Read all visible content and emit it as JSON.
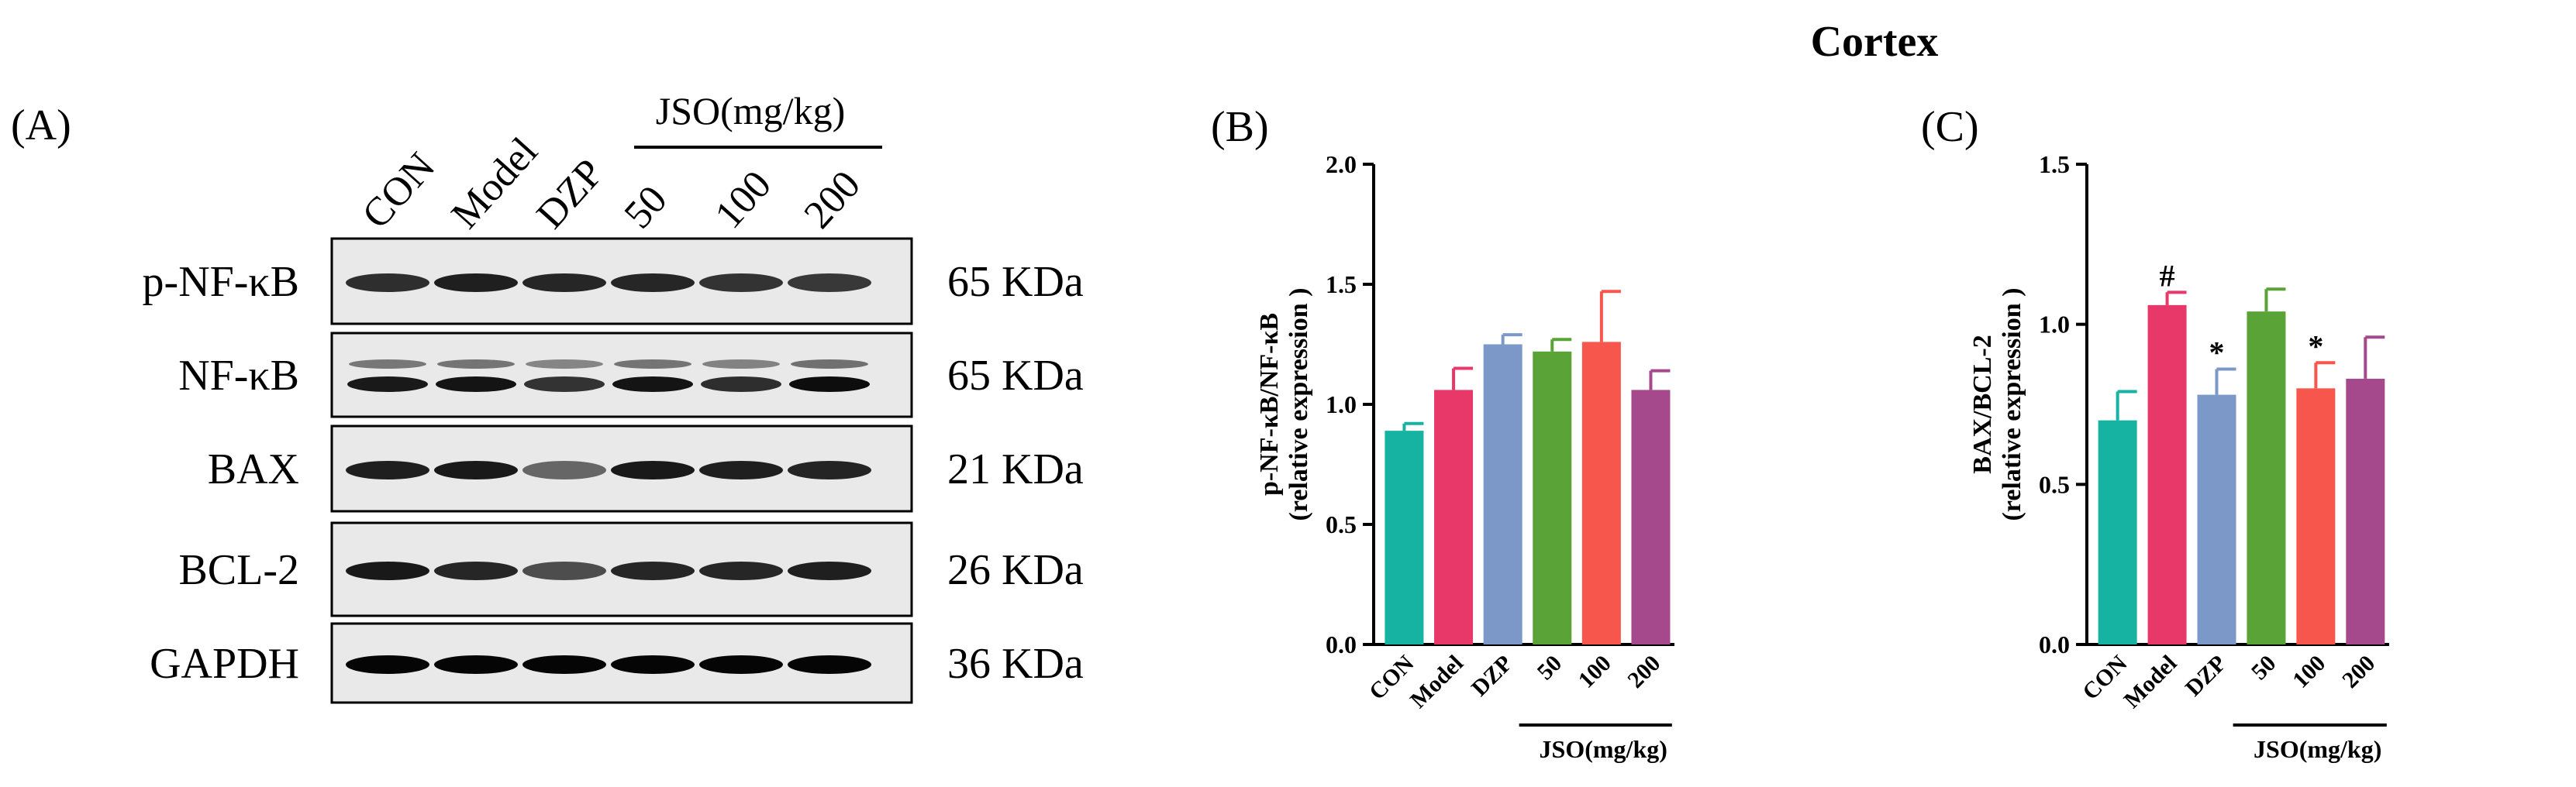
{
  "figure": {
    "title": "Cortex",
    "colors": [
      "#16b3a3",
      "#e8386a",
      "#7b98c9",
      "#5aa337",
      "#f6564c",
      "#a6498c"
    ]
  },
  "panel_a": {
    "label": "(A)",
    "lanes": [
      "CON",
      "Model",
      "DZP",
      "50",
      "100",
      "200"
    ],
    "group_label": "JSO(mg/kg)",
    "blots": [
      {
        "protein": "p-NF-κB",
        "size": "65 KDa"
      },
      {
        "protein": "NF-κB",
        "size": "65 KDa"
      },
      {
        "protein": "BAX",
        "size": "21 KDa"
      },
      {
        "protein": "BCL-2",
        "size": "26 KDa"
      },
      {
        "protein": "GAPDH",
        "size": "36 KDa"
      }
    ]
  },
  "chart_data": [
    {
      "panel": "(B)",
      "type": "bar",
      "categories": [
        "CON",
        "Model",
        "DZP",
        "50",
        "100",
        "200"
      ],
      "values": [
        0.89,
        1.06,
        1.25,
        1.22,
        1.26,
        1.06
      ],
      "errors": [
        0.03,
        0.09,
        0.04,
        0.05,
        0.21,
        0.08
      ],
      "annotations": [
        "",
        "",
        "",
        "",
        "",
        ""
      ],
      "ylabel": [
        "p-NF-κB/NF-κB",
        "(relative expression )"
      ],
      "group_label": "JSO(mg/kg)",
      "ylim": [
        0,
        2.0
      ],
      "yticks": [
        "0.0",
        "0.5",
        "1.0",
        "1.5",
        "2.0"
      ],
      "grid": false
    },
    {
      "panel": "(C)",
      "type": "bar",
      "categories": [
        "CON",
        "Model",
        "DZP",
        "50",
        "100",
        "200"
      ],
      "values": [
        0.7,
        1.06,
        0.78,
        1.04,
        0.8,
        0.83
      ],
      "errors": [
        0.09,
        0.04,
        0.08,
        0.07,
        0.08,
        0.13
      ],
      "annotations": [
        "",
        "#",
        "*",
        "",
        "*",
        ""
      ],
      "ylabel": [
        "BAX/BCL-2",
        "(relative expression )"
      ],
      "group_label": "JSO(mg/kg)",
      "ylim": [
        0,
        1.5
      ],
      "yticks": [
        "0.0",
        "0.5",
        "1.0",
        "1.5"
      ],
      "grid": false
    }
  ]
}
